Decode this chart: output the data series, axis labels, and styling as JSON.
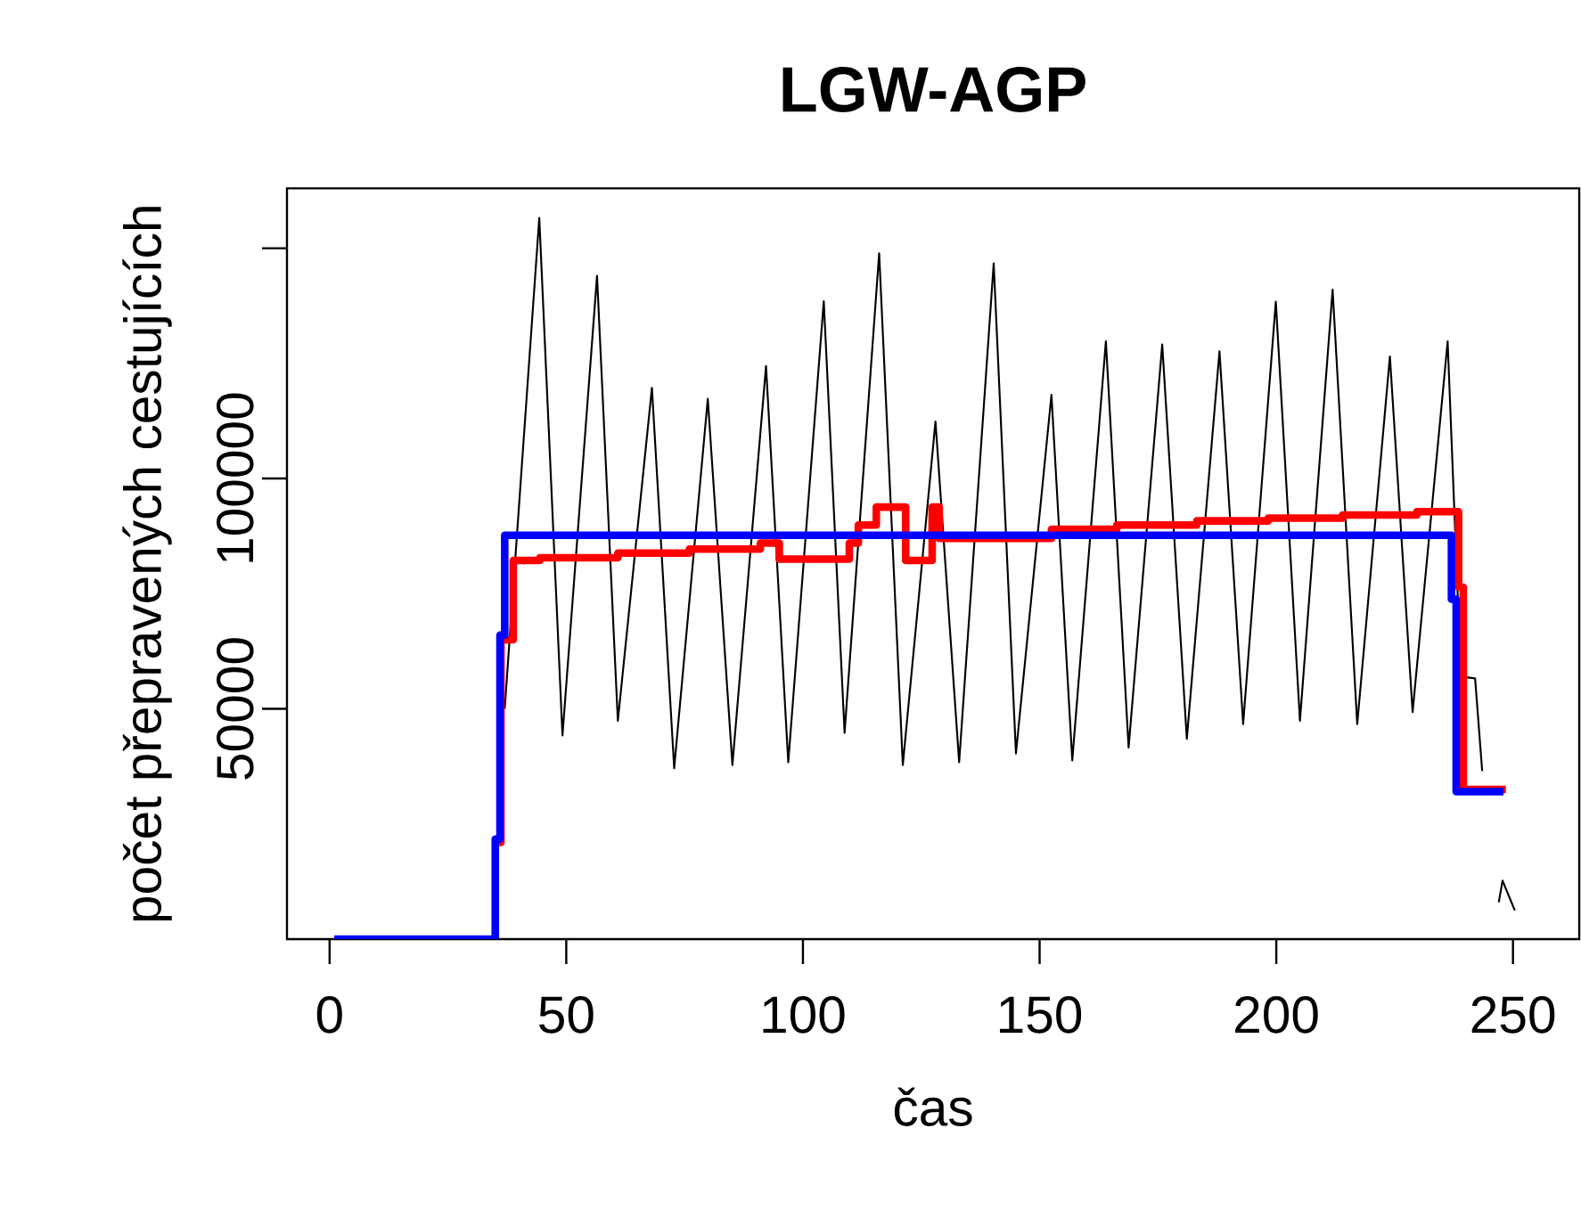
{
  "chart_data": {
    "type": "line",
    "title": "LGW-AGP",
    "xlabel": "čas",
    "ylabel": "počet přepravených cestujících",
    "xlim": [
      -9,
      264
    ],
    "ylim": [
      0,
      163000
    ],
    "xticks": [
      0,
      50,
      100,
      150,
      200,
      250
    ],
    "yticks": [
      50000,
      100000,
      {
        "value": 150000,
        "label": null
      }
    ],
    "series": [
      {
        "color": "#000000",
        "x": [
          37,
          44.3,
          49.2,
          56.5,
          60.9,
          68.1,
          72.8,
          79.9,
          85.1,
          92.2,
          96.9,
          104.4,
          108.8,
          116.1,
          121.1,
          128,
          133,
          140.3,
          145,
          152.5,
          156.9,
          164,
          168.8,
          175.9,
          181.1,
          188,
          193,
          199.9,
          205,
          211.9,
          217.1,
          224,
          228.8,
          236.2,
          239,
          242,
          243.5,
          245,
          247,
          247.8,
          250.4
        ],
        "values": [
          50000,
          156600,
          44200,
          144000,
          47400,
          119700,
          37100,
          117300,
          37800,
          124400,
          38400,
          138500,
          44800,
          148900,
          37800,
          112400,
          38400,
          146700,
          40300,
          118200,
          38800,
          129800,
          41600,
          129100,
          43500,
          127600,
          46700,
          138400,
          47400,
          141000,
          46700,
          126500,
          49300,
          129800,
          57000,
          56600,
          36500,
          null,
          8000,
          12700,
          6200
        ]
      },
      {
        "type": "step",
        "color": "#ff0000",
        "x": [
          35.5,
          36.2,
          38.8,
          44.4,
          60.9,
          76,
          91,
          95,
          109.8,
          111.7,
          115.5,
          121.7,
          127.3,
          128.8,
          152.5,
          166.3,
          183.2,
          198.3,
          214,
          229.7,
          238.5,
          239.5,
          248.5
        ],
        "values": [
          21000,
          65000,
          82200,
          82800,
          83800,
          84700,
          86000,
          82500,
          86000,
          89900,
          93800,
          82200,
          93800,
          87000,
          89000,
          89900,
          90800,
          91400,
          92100,
          92800,
          76400,
          32500,
          32500
        ]
      },
      {
        "type": "step",
        "color": "#0000ff",
        "x": [
          1,
          35,
          36,
          37,
          237,
          238,
          248
        ],
        "values": [
          0,
          21700,
          66000,
          87700,
          73800,
          32000,
          32000
        ]
      }
    ]
  }
}
